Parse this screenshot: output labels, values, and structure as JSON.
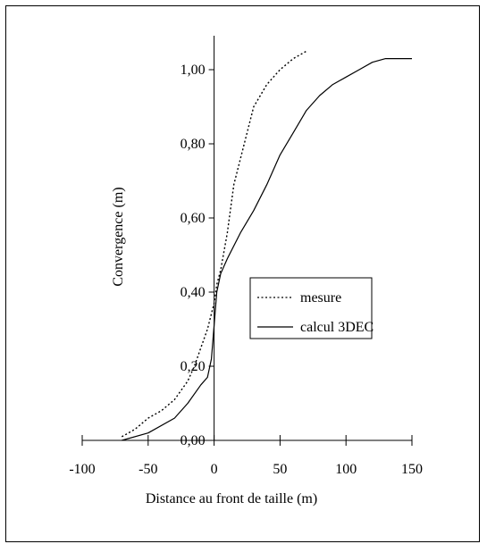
{
  "chart_data": {
    "type": "line",
    "xlabel": "Distance au front de taille (m)",
    "ylabel": "Convergence (m)",
    "xlim": [
      -100,
      150
    ],
    "ylim": [
      0,
      1.1
    ],
    "x_ticks": [
      -100,
      -50,
      0,
      50,
      100,
      150
    ],
    "x_tick_labels": [
      "-100",
      "-50",
      "0",
      "50",
      "100",
      "150"
    ],
    "y_ticks": [
      0,
      0.2,
      0.4,
      0.6,
      0.8,
      1.0
    ],
    "y_tick_labels": [
      "0,00",
      "0,20",
      "0,40",
      "0,60",
      "0,80",
      "1,00"
    ],
    "grid": false,
    "legend_position": "right-middle",
    "series": [
      {
        "name": "mesure",
        "style": "dotted",
        "color": "#000000",
        "x": [
          -70,
          -60,
          -50,
          -40,
          -30,
          -20,
          -15,
          -10,
          -5,
          0,
          2,
          5,
          10,
          15,
          20,
          25,
          30,
          40,
          50,
          60,
          70
        ],
        "y": [
          0.01,
          0.03,
          0.06,
          0.08,
          0.11,
          0.16,
          0.2,
          0.25,
          0.3,
          0.37,
          0.42,
          0.46,
          0.56,
          0.69,
          0.76,
          0.83,
          0.9,
          0.96,
          1.0,
          1.03,
          1.05
        ]
      },
      {
        "name": "calcul 3DEC",
        "style": "solid",
        "color": "#000000",
        "x": [
          -70,
          -50,
          -30,
          -20,
          -10,
          -5,
          -2,
          0,
          2,
          5,
          10,
          20,
          30,
          40,
          50,
          60,
          70,
          80,
          90,
          100,
          110,
          120,
          130,
          140,
          150
        ],
        "y": [
          0.0,
          0.02,
          0.06,
          0.1,
          0.15,
          0.17,
          0.22,
          0.31,
          0.4,
          0.45,
          0.49,
          0.56,
          0.62,
          0.69,
          0.77,
          0.83,
          0.89,
          0.93,
          0.96,
          0.98,
          1.0,
          1.02,
          1.03,
          1.03,
          1.03
        ]
      }
    ]
  }
}
